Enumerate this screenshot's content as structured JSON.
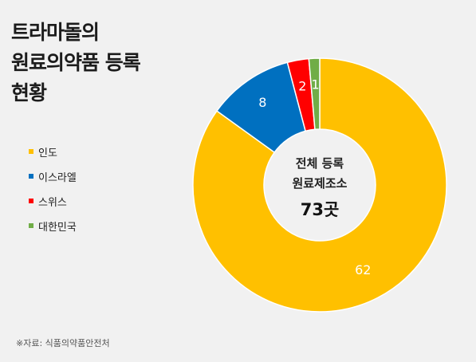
{
  "title": {
    "line1": "트라마돌의",
    "line2": "원료의약품 등록",
    "line3": "현황"
  },
  "center": {
    "line1": "전체 등록",
    "line2": "원료제조소",
    "line3": "73곳"
  },
  "source": "※자료: 식품의약품안전처",
  "colors": {
    "india": "#ffc000",
    "israel": "#0070c0",
    "switzerland": "#ff0000",
    "korea": "#70ad47"
  },
  "chart_data": {
    "type": "pie",
    "categories": [
      "인도",
      "이스라엘",
      "스위스",
      "대한민국"
    ],
    "values": [
      62,
      8,
      2,
      1
    ],
    "data_labels": [
      "62",
      "8",
      "2",
      "1"
    ],
    "legend": "left",
    "donut": true
  }
}
